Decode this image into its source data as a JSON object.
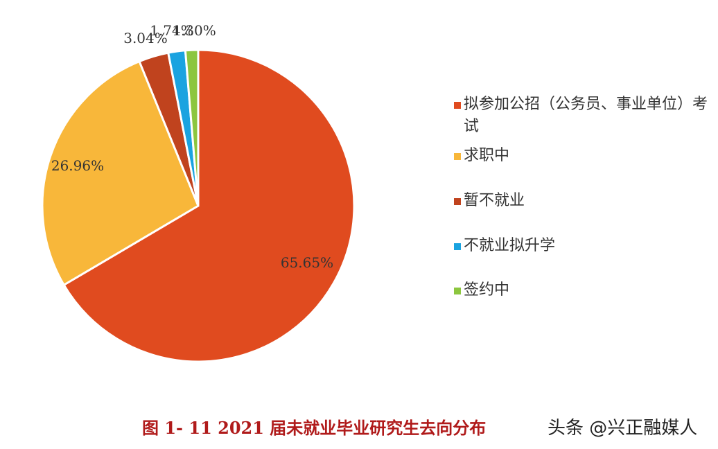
{
  "chart_data": {
    "type": "pie",
    "categories": [
      "拟参加公招（公务员、事业单位）考试",
      "求职中",
      "暂不就业",
      "不就业拟升学",
      "签约中"
    ],
    "values": [
      65.65,
      26.96,
      3.04,
      1.74,
      1.3
    ],
    "labels": [
      "65.65%",
      "26.96%",
      "3.04%",
      "1.74%",
      "1.30%"
    ],
    "colors": [
      "#e04b1f",
      "#f8b73a",
      "#c0431e",
      "#1aa3e0",
      "#8cc63f"
    ],
    "start_angle_deg": 0,
    "direction": "clockwise",
    "legend_position": "right"
  },
  "caption": "图 1- 11    2021 届未就业毕业研究生去向分布",
  "watermark": "头条 @兴正融媒人"
}
